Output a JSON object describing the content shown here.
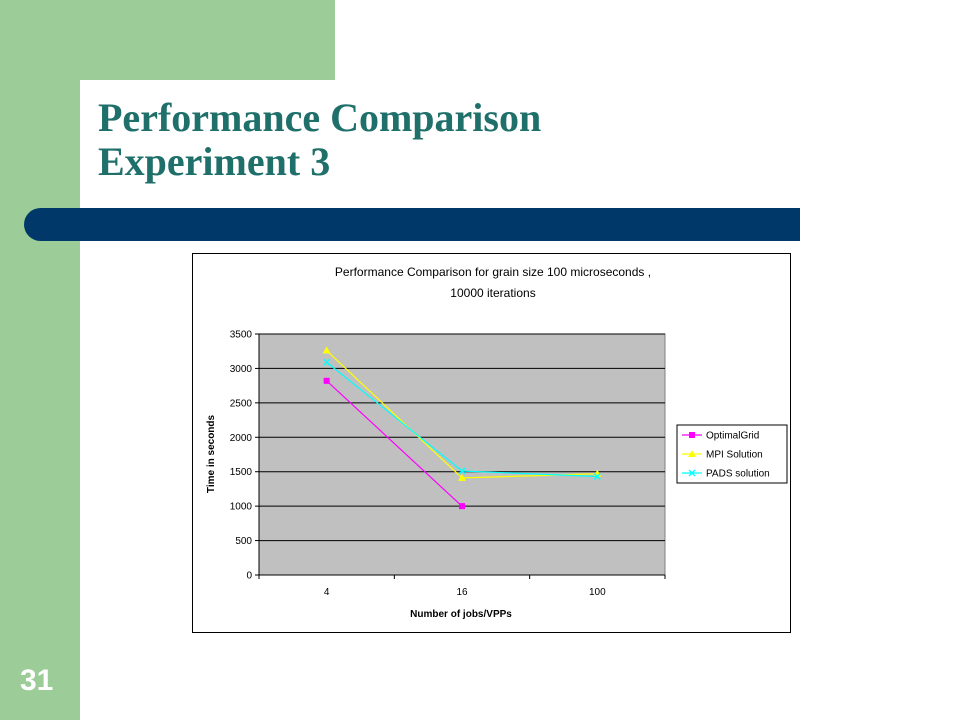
{
  "slide": {
    "title_line1": "Performance Comparison",
    "title_line2": "Experiment 3",
    "page_number": "31"
  },
  "colors": {
    "side_green": "#9ccc98",
    "title_teal": "#1f6f6a",
    "bar_navy": "#00386a",
    "plot_gray": "#c0c0c0"
  },
  "chart_data": {
    "type": "line",
    "title_line1": "Performance Comparison for grain size 100 microseconds ,",
    "title_line2": "10000 iterations",
    "xlabel": "Number of jobs/VPPs",
    "ylabel": "Time in seconds",
    "categories": [
      "4",
      "16",
      "100"
    ],
    "ylim": [
      0,
      3500
    ],
    "yticks": [
      0,
      500,
      1000,
      1500,
      2000,
      2500,
      3000,
      3500
    ],
    "grid": true,
    "legend_position": "right",
    "series": [
      {
        "name": "OptimalGrid",
        "values": [
          2820,
          1000,
          null
        ],
        "color": "#ff00ff",
        "marker": "square"
      },
      {
        "name": "MPI Solution",
        "values": [
          3260,
          1410,
          1470
        ],
        "color": "#ffff00",
        "marker": "triangle"
      },
      {
        "name": "PADS solution",
        "values": [
          3090,
          1510,
          1430
        ],
        "color": "#00ffff",
        "marker": "x"
      }
    ]
  }
}
